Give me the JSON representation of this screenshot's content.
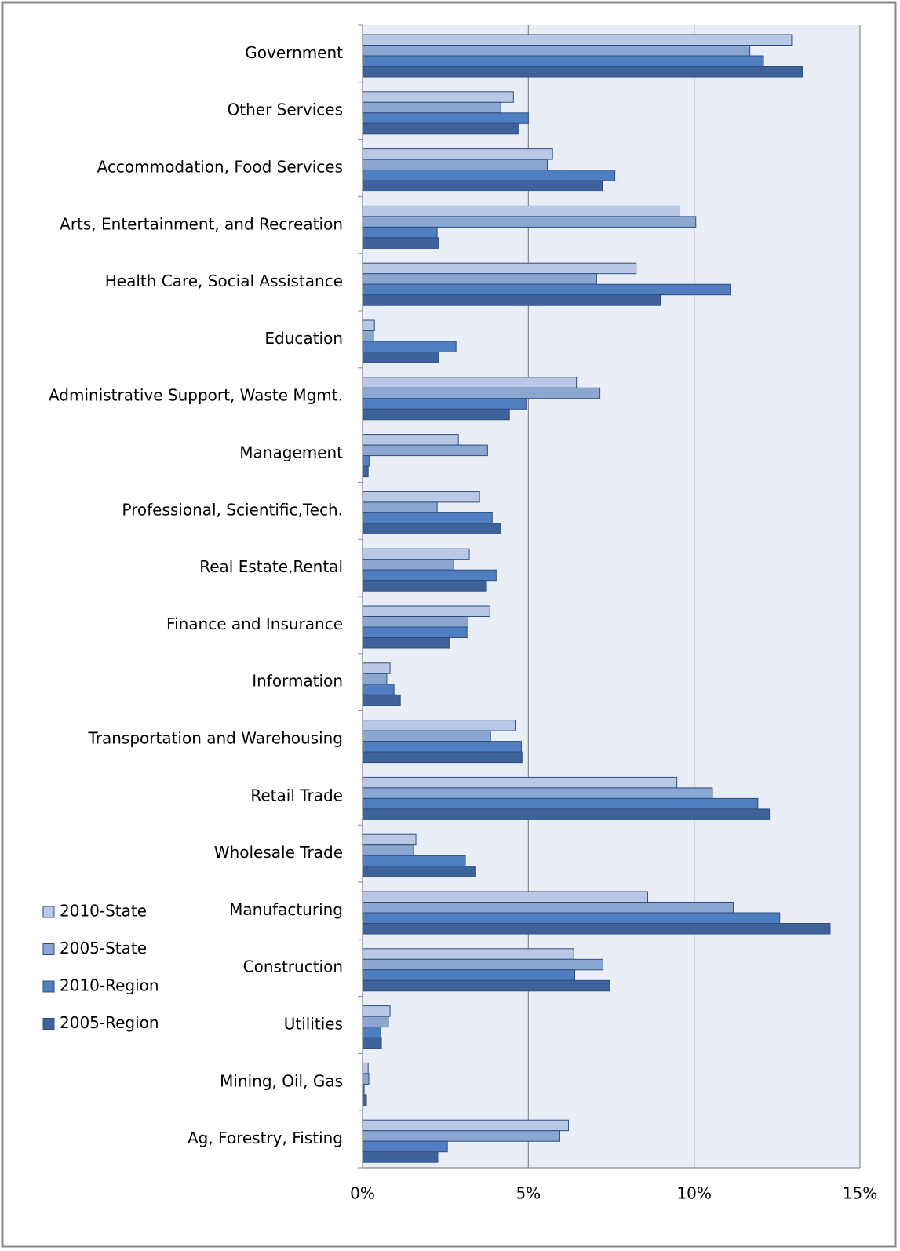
{
  "chart_data": {
    "type": "bar",
    "orientation": "horizontal",
    "categories": [
      "Government",
      "Other Services",
      "Accommodation, Food Services",
      "Arts, Entertainment, and Recreation",
      "Health Care, Social Assistance",
      "Education",
      "Administrative Support, Waste Mgmt.",
      "Management",
      "Professional, Scientific,Tech.",
      "Real Estate,Rental",
      "Finance and Insurance",
      "Information",
      "Transportation and Warehousing",
      "Retail Trade",
      "Wholesale Trade",
      "Manufacturing",
      "Construction",
      "Utilities",
      "Mining, Oil, Gas",
      "Ag, Forestry, Fisting"
    ],
    "series": [
      {
        "name": "2010-State",
        "color": "#b9c9e5",
        "values": [
          12.94,
          4.55,
          5.73,
          9.57,
          8.25,
          0.36,
          6.45,
          2.89,
          3.53,
          3.22,
          3.84,
          0.83,
          4.6,
          9.48,
          1.61,
          8.6,
          6.37,
          0.83,
          0.17,
          6.21
        ]
      },
      {
        "name": "2005-State",
        "color": "#8aa6d1",
        "values": [
          11.68,
          4.17,
          5.57,
          10.05,
          7.06,
          0.33,
          7.16,
          3.77,
          2.25,
          2.75,
          3.18,
          0.73,
          3.86,
          10.55,
          1.54,
          11.18,
          7.25,
          0.78,
          0.19,
          5.95
        ]
      },
      {
        "name": "2010-Region",
        "color": "#4f7fc1",
        "values": [
          12.09,
          5.0,
          7.61,
          2.25,
          11.09,
          2.82,
          4.93,
          0.21,
          3.91,
          4.03,
          3.15,
          0.95,
          4.79,
          11.92,
          3.1,
          12.58,
          6.4,
          0.55,
          0.05,
          2.56
        ]
      },
      {
        "name": "2005-Region",
        "color": "#3e639b",
        "values": [
          13.27,
          4.72,
          7.23,
          2.3,
          8.98,
          2.3,
          4.43,
          0.17,
          4.15,
          3.74,
          2.63,
          1.14,
          4.81,
          12.27,
          3.39,
          14.1,
          7.44,
          0.57,
          0.12,
          2.27
        ]
      }
    ],
    "xlim": [
      0,
      15
    ],
    "xticks": [
      {
        "value": 0,
        "label": "0%"
      },
      {
        "value": 5,
        "label": "5%"
      },
      {
        "value": 10,
        "label": "10%"
      },
      {
        "value": 15,
        "label": "15%"
      }
    ],
    "grid": true,
    "legend": "left"
  }
}
